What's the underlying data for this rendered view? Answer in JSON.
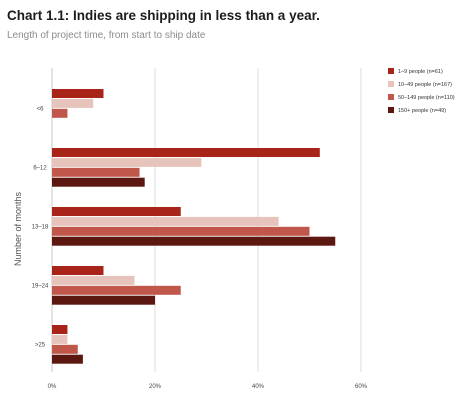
{
  "chart_data": {
    "type": "bar",
    "orientation": "horizontal",
    "title": "Chart 1.1: Indies are shipping in less than a year.",
    "subtitle": "Length of project time, from start to ship date",
    "xlabel": "",
    "ylabel": "Number of months",
    "xlim": [
      0,
      60
    ],
    "xticks": [
      0,
      20,
      40,
      60
    ],
    "xtick_labels": [
      "0%",
      "20%",
      "40%",
      "60%"
    ],
    "grid": true,
    "legend_position": "top-right",
    "categories": [
      "<6",
      "6–12",
      "13–18",
      "19–24",
      ">25"
    ],
    "series": [
      {
        "name": "1–9 people (n=61)",
        "color": "#a82418",
        "values": [
          10,
          52,
          25,
          10,
          3
        ]
      },
      {
        "name": "10–49 people (n=167)",
        "color": "#e6c4bc",
        "values": [
          8,
          29,
          44,
          16,
          3
        ]
      },
      {
        "name": "50–149 people (n=110)",
        "color": "#c1574a",
        "values": [
          3,
          17,
          50,
          25,
          5
        ]
      },
      {
        "name": "150+ people (n=49)",
        "color": "#5c1710",
        "values": [
          0,
          18,
          55,
          20,
          6
        ]
      }
    ]
  }
}
